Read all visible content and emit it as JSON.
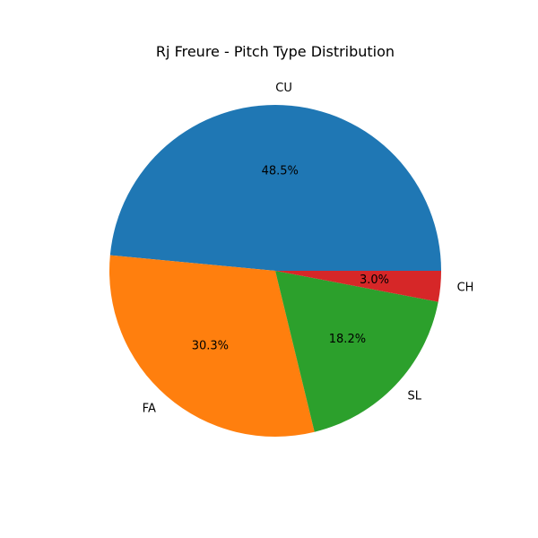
{
  "chart_data": {
    "type": "pie",
    "title": "Rj Freure - Pitch Type Distribution",
    "slices": [
      {
        "label": "CU",
        "value": 48.5,
        "pct_label": "48.5%",
        "color": "#1f77b4"
      },
      {
        "label": "FA",
        "value": 30.3,
        "pct_label": "30.3%",
        "color": "#ff7f0e"
      },
      {
        "label": "SL",
        "value": 18.2,
        "pct_label": "18.2%",
        "color": "#2ca02c"
      },
      {
        "label": "CH",
        "value": 3.0,
        "pct_label": "3.0%",
        "color": "#d62728"
      }
    ],
    "start_angle": "0 degrees (3 o'clock), counter-clockwise"
  }
}
